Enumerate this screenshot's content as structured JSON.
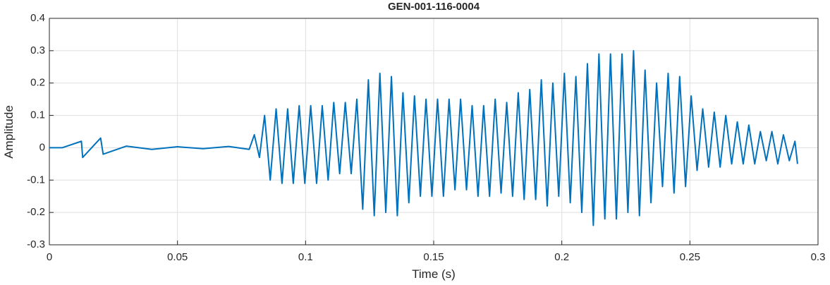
{
  "chart_data": {
    "type": "line",
    "title": "GEN-001-116-0004",
    "x_label": "Time (s)",
    "y_label": "Amplitude",
    "xlim": [
      0,
      0.3
    ],
    "ylim": [
      -0.3,
      0.4
    ],
    "xticks": [
      0,
      0.05,
      0.1,
      0.15,
      0.2,
      0.25,
      0.3
    ],
    "yticks": [
      -0.3,
      -0.2,
      -0.1,
      0,
      0.1,
      0.2,
      0.3,
      0.4
    ],
    "grid": true,
    "x": [
      0,
      0.005,
      0.0125,
      0.013,
      0.02,
      0.021,
      0.03,
      0.04,
      0.05,
      0.06,
      0.07,
      0.078,
      0.08,
      0.082,
      0.084,
      0.0862,
      0.0885,
      0.0908,
      0.093,
      0.0952,
      0.0975,
      0.0997,
      0.102,
      0.1043,
      0.1065,
      0.1088,
      0.111,
      0.1133,
      0.1155,
      0.1178,
      0.12,
      0.1223,
      0.1245,
      0.1268,
      0.129,
      0.1313,
      0.1335,
      0.1358,
      0.138,
      0.1403,
      0.1425,
      0.1448,
      0.147,
      0.1493,
      0.1515,
      0.1538,
      0.156,
      0.1583,
      0.1605,
      0.1628,
      0.165,
      0.1673,
      0.1695,
      0.1718,
      0.174,
      0.1763,
      0.1785,
      0.1808,
      0.183,
      0.1853,
      0.1875,
      0.1898,
      0.192,
      0.1943,
      0.1965,
      0.1988,
      0.201,
      0.2033,
      0.2055,
      0.2078,
      0.21,
      0.2123,
      0.2145,
      0.2168,
      0.219,
      0.2213,
      0.2235,
      0.2258,
      0.228,
      0.2303,
      0.2325,
      0.2348,
      0.237,
      0.2393,
      0.2415,
      0.2438,
      0.246,
      0.2483,
      0.2505,
      0.2528,
      0.255,
      0.2573,
      0.2595,
      0.2618,
      0.264,
      0.2663,
      0.2685,
      0.2708,
      0.273,
      0.2753,
      0.2775,
      0.2798,
      0.282,
      0.2843,
      0.2865,
      0.2888,
      0.291,
      0.292
    ],
    "series": [
      {
        "color": "#0072bd",
        "values": [
          0,
          0,
          0.02,
          -0.03,
          0.03,
          -0.02,
          0.005,
          -0.005,
          0.003,
          -0.003,
          0.004,
          -0.005,
          0.04,
          -0.03,
          0.1,
          -0.1,
          0.12,
          -0.11,
          0.12,
          -0.11,
          0.13,
          -0.11,
          0.13,
          -0.11,
          0.13,
          -0.1,
          0.14,
          -0.08,
          0.14,
          -0.08,
          0.15,
          -0.19,
          0.21,
          -0.21,
          0.23,
          -0.2,
          0.22,
          -0.21,
          0.17,
          -0.17,
          0.16,
          -0.15,
          0.15,
          -0.15,
          0.15,
          -0.15,
          0.15,
          -0.13,
          0.15,
          -0.13,
          0.13,
          -0.15,
          0.13,
          -0.15,
          0.15,
          -0.14,
          0.14,
          -0.15,
          0.17,
          -0.16,
          0.18,
          -0.16,
          0.21,
          -0.18,
          0.2,
          -0.15,
          0.23,
          -0.17,
          0.22,
          -0.2,
          0.26,
          -0.24,
          0.29,
          -0.22,
          0.29,
          -0.22,
          0.29,
          -0.2,
          0.3,
          -0.21,
          0.24,
          -0.17,
          0.2,
          -0.12,
          0.23,
          -0.14,
          0.22,
          -0.12,
          0.16,
          -0.07,
          0.12,
          -0.06,
          0.11,
          -0.06,
          0.1,
          -0.05,
          0.08,
          -0.05,
          0.07,
          -0.05,
          0.05,
          -0.04,
          0.05,
          -0.05,
          0.04,
          -0.04,
          0.02,
          -0.05
        ]
      }
    ]
  }
}
